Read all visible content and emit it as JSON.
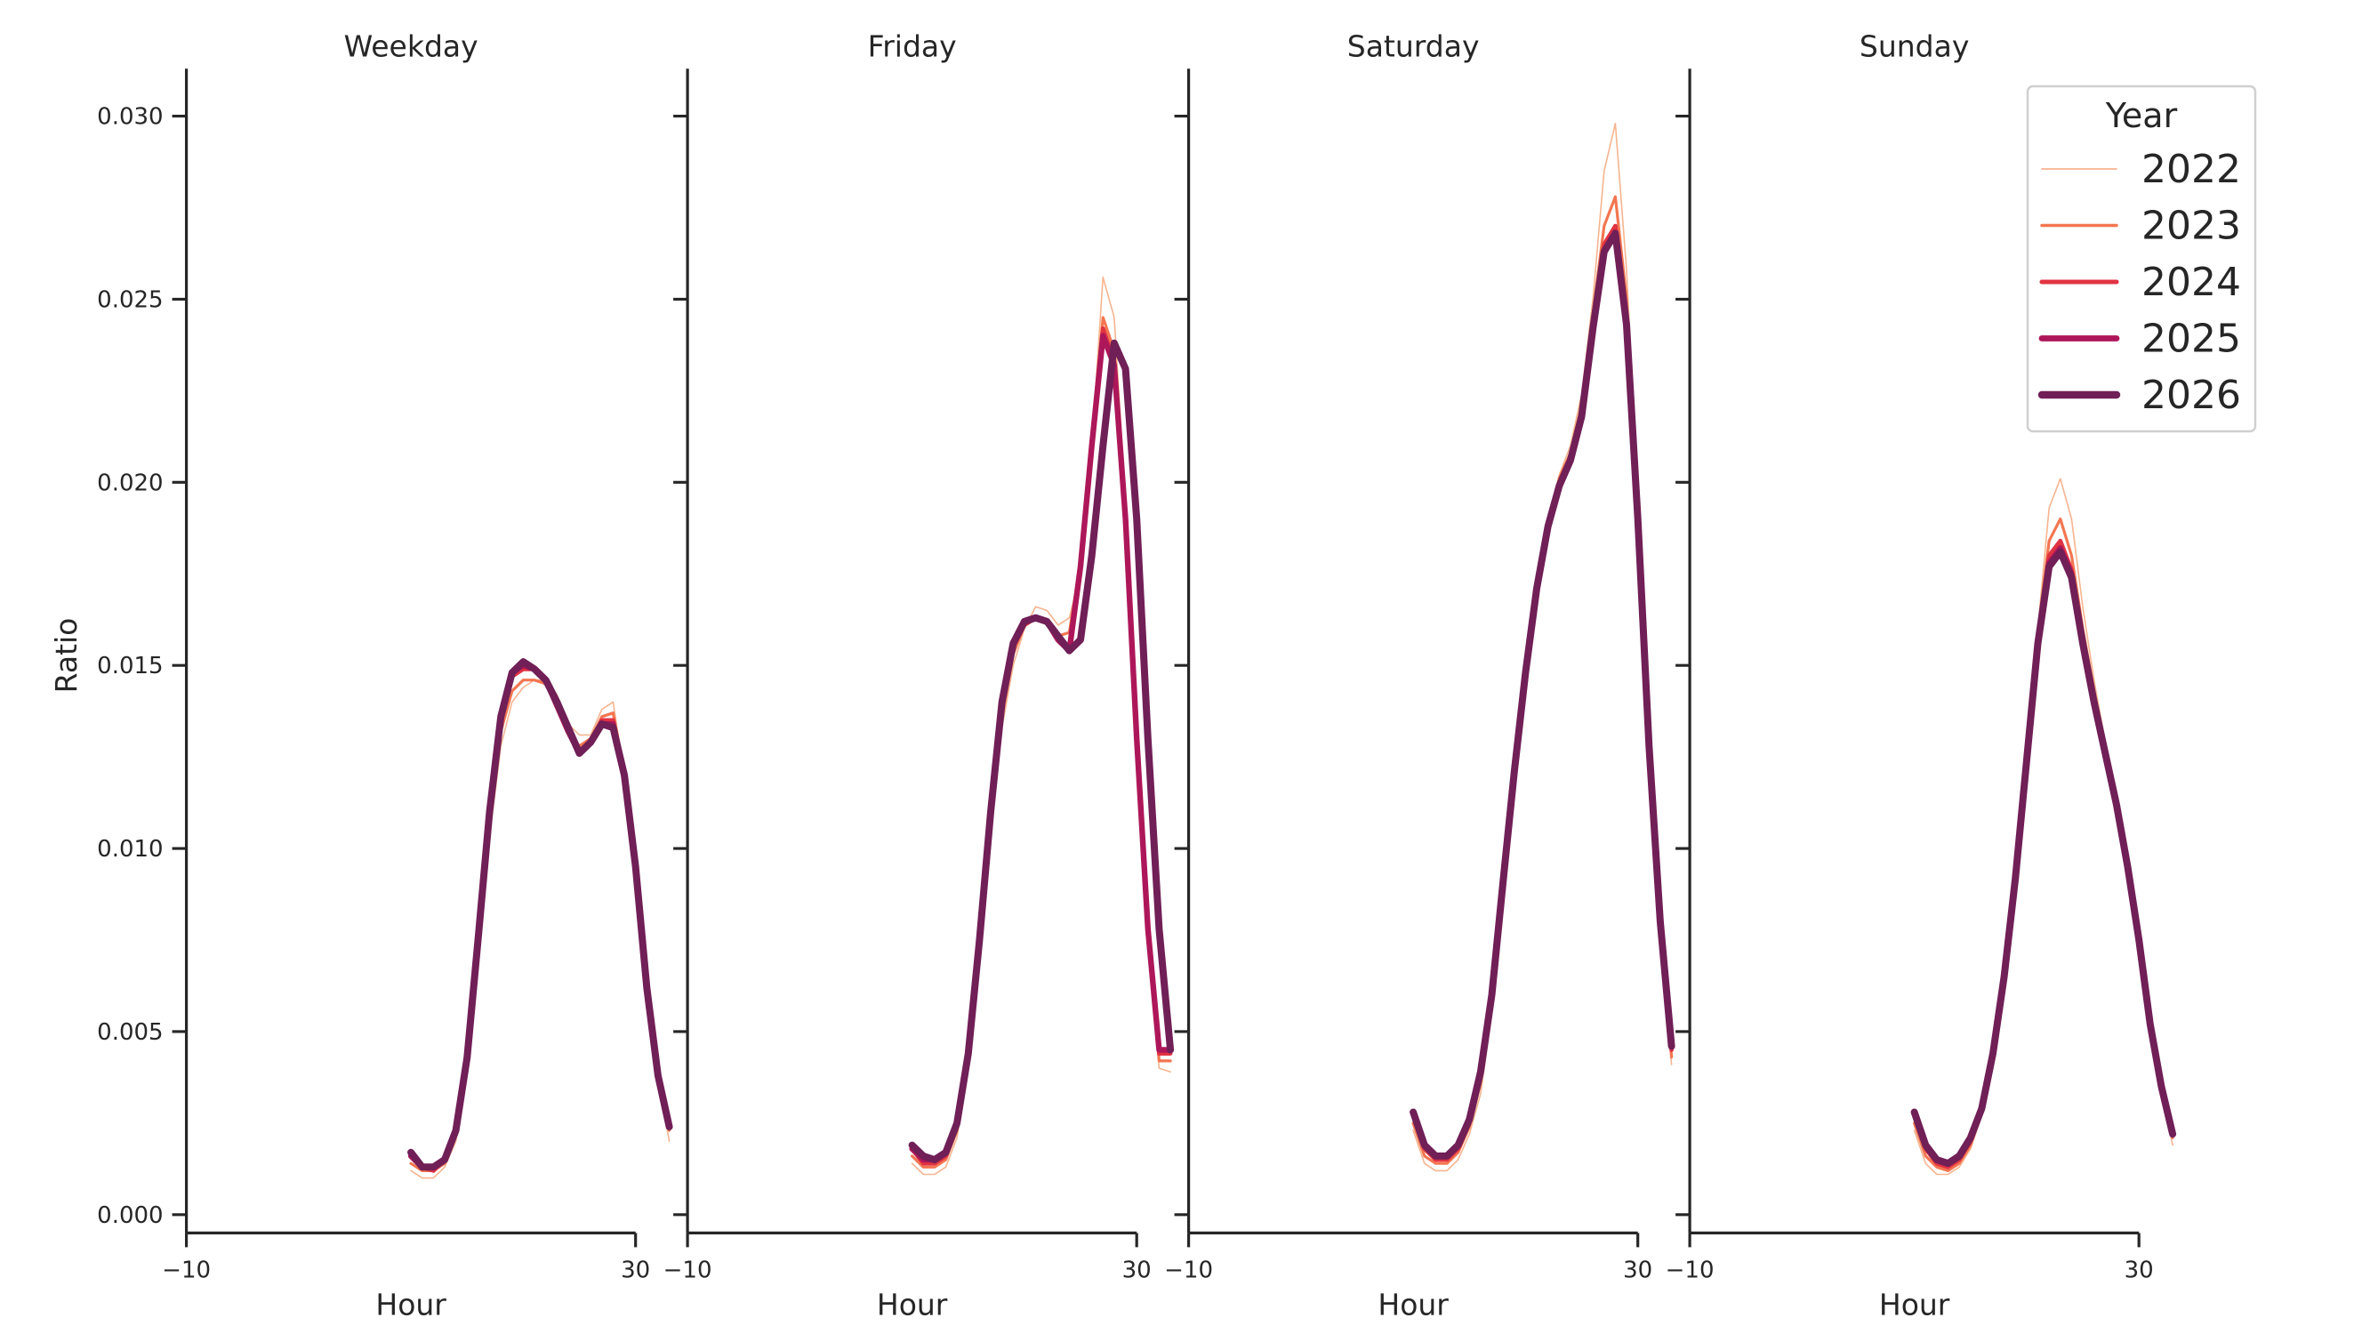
{
  "chart_data": {
    "type": "line",
    "layout": "facet_grid_1x4",
    "ylabel": "Ratio",
    "xlabel": "Hour",
    "xlim": [
      -10,
      30
    ],
    "xticks": [
      "−10",
      "30"
    ],
    "ylim": [
      -0.0005,
      0.0313
    ],
    "yticks": [
      "0.000",
      "0.005",
      "0.010",
      "0.015",
      "0.020",
      "0.025",
      "0.030"
    ],
    "grid": false,
    "legend": {
      "title": "Year",
      "position": "upper right",
      "entries": [
        {
          "label": "2022",
          "color": "#f6b48f",
          "width": 2
        },
        {
          "label": "2023",
          "color": "#f37651",
          "width": 4
        },
        {
          "label": "2024",
          "color": "#e13342",
          "width": 6
        },
        {
          "label": "2025",
          "color": "#ad1759",
          "width": 8
        },
        {
          "label": "2026",
          "color": "#701f57",
          "width": 10
        }
      ]
    },
    "x": [
      10,
      11,
      12,
      13,
      14,
      15,
      16,
      17,
      18,
      19,
      20,
      21,
      22,
      23,
      24,
      25,
      26,
      27,
      28,
      29,
      30,
      31,
      32,
      33
    ],
    "panels": [
      {
        "title": "Weekday",
        "series": [
          {
            "name": "2022",
            "values": [
              0.0012,
              0.001,
              0.001,
              0.0013,
              0.002,
              0.004,
              0.0072,
              0.0103,
              0.0128,
              0.014,
              0.0144,
              0.0146,
              0.0146,
              0.0142,
              0.0134,
              0.0131,
              0.0131,
              0.0138,
              0.014,
              0.012,
              0.0093,
              0.006,
              0.0037,
              0.002
            ]
          },
          {
            "name": "2023",
            "values": [
              0.0014,
              0.0012,
              0.0012,
              0.0014,
              0.0022,
              0.0041,
              0.0074,
              0.0107,
              0.0132,
              0.0143,
              0.0146,
              0.0146,
              0.0145,
              0.014,
              0.0132,
              0.0128,
              0.013,
              0.0136,
              0.0137,
              0.0121,
              0.0094,
              0.0062,
              0.0038,
              0.0023
            ]
          },
          {
            "name": "2024",
            "values": [
              0.0016,
              0.0013,
              0.0012,
              0.0015,
              0.0022,
              0.0042,
              0.0075,
              0.0109,
              0.0135,
              0.0147,
              0.0149,
              0.0149,
              0.0146,
              0.0139,
              0.0132,
              0.0126,
              0.0129,
              0.0135,
              0.0135,
              0.012,
              0.0095,
              0.0062,
              0.0038,
              0.0024
            ]
          },
          {
            "name": "2025",
            "values": [
              0.0016,
              0.0013,
              0.0013,
              0.0015,
              0.0023,
              0.0042,
              0.0076,
              0.011,
              0.0135,
              0.0148,
              0.015,
              0.0149,
              0.0146,
              0.0139,
              0.0132,
              0.0126,
              0.0129,
              0.0134,
              0.0134,
              0.012,
              0.0095,
              0.0062,
              0.0038,
              0.0024
            ]
          },
          {
            "name": "2026",
            "values": [
              0.0017,
              0.0013,
              0.0013,
              0.0015,
              0.0023,
              0.0043,
              0.0076,
              0.011,
              0.0136,
              0.0148,
              0.0151,
              0.0149,
              0.0146,
              0.014,
              0.0133,
              0.0126,
              0.0129,
              0.0134,
              0.0133,
              0.012,
              0.0095,
              0.0062,
              0.0038,
              0.0024
            ]
          }
        ]
      },
      {
        "title": "Friday",
        "series": [
          {
            "name": "2022",
            "values": [
              0.0014,
              0.0011,
              0.0011,
              0.0013,
              0.0021,
              0.004,
              0.007,
              0.0104,
              0.0133,
              0.015,
              0.016,
              0.0166,
              0.0165,
              0.0161,
              0.0163,
              0.0175,
              0.021,
              0.0256,
              0.0245,
              0.0195,
              0.0135,
              0.008,
              0.004,
              0.0039
            ]
          },
          {
            "name": "2023",
            "values": [
              0.0016,
              0.0013,
              0.0013,
              0.0015,
              0.0023,
              0.0042,
              0.0072,
              0.0107,
              0.0136,
              0.0153,
              0.0161,
              0.0163,
              0.0162,
              0.0158,
              0.0159,
              0.0178,
              0.0212,
              0.0245,
              0.0236,
              0.0193,
              0.0133,
              0.0079,
              0.0042,
              0.0042
            ]
          },
          {
            "name": "2024",
            "values": [
              0.0018,
              0.0014,
              0.0014,
              0.0016,
              0.0024,
              0.0043,
              0.0074,
              0.0109,
              0.0139,
              0.0155,
              0.0161,
              0.0163,
              0.0162,
              0.0157,
              0.0155,
              0.0178,
              0.0211,
              0.0242,
              0.0233,
              0.0191,
              0.0131,
              0.0078,
              0.0044,
              0.0044
            ]
          },
          {
            "name": "2025",
            "values": [
              0.0018,
              0.0015,
              0.0015,
              0.0017,
              0.0025,
              0.0044,
              0.0075,
              0.011,
              0.014,
              0.0156,
              0.0162,
              0.0163,
              0.0162,
              0.0157,
              0.0154,
              0.0177,
              0.021,
              0.024,
              0.0232,
              0.019,
              0.013,
              0.0078,
              0.0045,
              0.0045
            ]
          },
          {
            "name": "2026",
            "values": [
              0.0019,
              0.0016,
              0.0015,
              0.0017,
              0.0025,
              0.0044,
              0.0075,
              0.011,
              0.014,
              0.0156,
              0.0162,
              0.0163,
              0.0162,
              0.0158,
              0.0154,
              0.0157,
              0.018,
              0.021,
              0.0238,
              0.0231,
              0.019,
              0.013,
              0.0078,
              0.0045
            ]
          }
        ]
      },
      {
        "title": "Saturday",
        "series": [
          {
            "name": "2022",
            "values": [
              0.0023,
              0.0014,
              0.0012,
              0.0012,
              0.0015,
              0.0022,
              0.0033,
              0.0055,
              0.0087,
              0.0119,
              0.0147,
              0.0171,
              0.0189,
              0.0202,
              0.021,
              0.0224,
              0.025,
              0.0285,
              0.0298,
              0.0258,
              0.0197,
              0.013,
              0.008,
              0.0041
            ]
          },
          {
            "name": "2023",
            "values": [
              0.0025,
              0.0016,
              0.0014,
              0.0014,
              0.0017,
              0.0024,
              0.0036,
              0.0057,
              0.0089,
              0.012,
              0.0147,
              0.0171,
              0.0189,
              0.0201,
              0.0208,
              0.0221,
              0.0246,
              0.027,
              0.0278,
              0.025,
              0.0193,
              0.0129,
              0.008,
              0.0043
            ]
          },
          {
            "name": "2024",
            "values": [
              0.0027,
              0.0018,
              0.0015,
              0.0015,
              0.0018,
              0.0025,
              0.0038,
              0.0059,
              0.009,
              0.0121,
              0.0148,
              0.0171,
              0.0188,
              0.02,
              0.0207,
              0.0219,
              0.0243,
              0.0265,
              0.027,
              0.0245,
              0.0191,
              0.0128,
              0.008,
              0.0045
            ]
          },
          {
            "name": "2025",
            "values": [
              0.0028,
              0.0019,
              0.0016,
              0.0016,
              0.0019,
              0.0026,
              0.0039,
              0.006,
              0.0091,
              0.0121,
              0.0148,
              0.0171,
              0.0188,
              0.0199,
              0.0206,
              0.0218,
              0.0242,
              0.0263,
              0.0268,
              0.0243,
              0.019,
              0.0128,
              0.008,
              0.0046
            ]
          },
          {
            "name": "2026",
            "values": [
              0.0028,
              0.0019,
              0.0016,
              0.0016,
              0.0019,
              0.0026,
              0.0039,
              0.006,
              0.0091,
              0.0121,
              0.0148,
              0.0171,
              0.0188,
              0.0199,
              0.0206,
              0.0218,
              0.0242,
              0.0263,
              0.0268,
              0.0243,
              0.019,
              0.0128,
              0.008,
              0.0046
            ]
          }
        ]
      },
      {
        "title": "Sunday",
        "series": [
          {
            "name": "2022",
            "values": [
              0.0023,
              0.0014,
              0.0011,
              0.0011,
              0.0013,
              0.0018,
              0.0027,
              0.0042,
              0.0063,
              0.0091,
              0.0126,
              0.016,
              0.0193,
              0.0201,
              0.019,
              0.0166,
              0.0146,
              0.0129,
              0.0113,
              0.0096,
              0.0075,
              0.0051,
              0.0033,
              0.0019
            ]
          },
          {
            "name": "2023",
            "values": [
              0.0025,
              0.0016,
              0.0013,
              0.0012,
              0.0014,
              0.0019,
              0.0028,
              0.0043,
              0.0064,
              0.0092,
              0.0126,
              0.0159,
              0.0184,
              0.019,
              0.018,
              0.016,
              0.0143,
              0.0128,
              0.0113,
              0.0096,
              0.0075,
              0.0052,
              0.0034,
              0.0021
            ]
          },
          {
            "name": "2024",
            "values": [
              0.0027,
              0.0018,
              0.0014,
              0.0013,
              0.0015,
              0.002,
              0.0029,
              0.0044,
              0.0065,
              0.0092,
              0.0125,
              0.0157,
              0.018,
              0.0184,
              0.0176,
              0.0157,
              0.0141,
              0.0127,
              0.0112,
              0.0095,
              0.0075,
              0.0052,
              0.0035,
              0.0022
            ]
          },
          {
            "name": "2025",
            "values": [
              0.0028,
              0.0019,
              0.0015,
              0.0014,
              0.0016,
              0.0021,
              0.0029,
              0.0044,
              0.0065,
              0.0092,
              0.0124,
              0.0156,
              0.0178,
              0.0182,
              0.0175,
              0.0156,
              0.014,
              0.0126,
              0.0112,
              0.0095,
              0.0075,
              0.0052,
              0.0035,
              0.0022
            ]
          },
          {
            "name": "2026",
            "values": [
              0.0028,
              0.0019,
              0.0015,
              0.0014,
              0.0016,
              0.0021,
              0.0029,
              0.0044,
              0.0065,
              0.0092,
              0.0124,
              0.0156,
              0.0177,
              0.0181,
              0.0174,
              0.0156,
              0.014,
              0.0126,
              0.0112,
              0.0095,
              0.0075,
              0.0052,
              0.0035,
              0.0022
            ]
          }
        ]
      }
    ]
  }
}
